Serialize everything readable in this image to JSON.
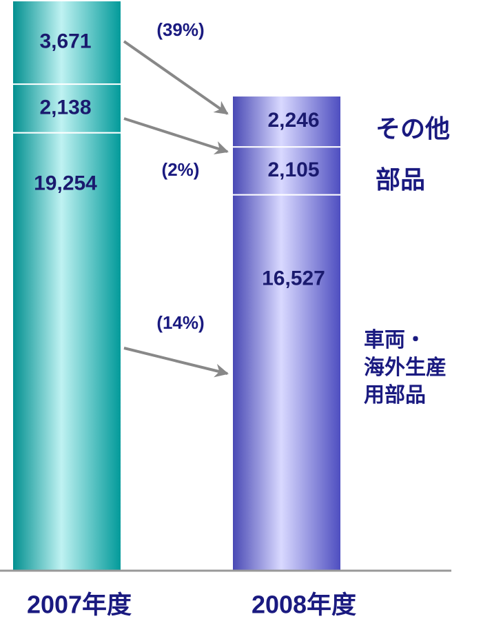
{
  "chart_data": {
    "type": "stacked_bar",
    "categories": [
      "2007年度",
      "2008年度"
    ],
    "colors": [
      "#00cccc",
      "#6666ff"
    ],
    "series": [
      {
        "name": "車両・\n海外生産\n用部品",
        "values": [
          19254,
          16527
        ],
        "value_labels": [
          "19,254",
          "16,527"
        ]
      },
      {
        "name": "部品",
        "values": [
          2138,
          2105
        ],
        "value_labels": [
          "2,138",
          "2,105"
        ]
      },
      {
        "name": "その他",
        "values": [
          3671,
          2246
        ],
        "value_labels": [
          "3,671",
          "2,246"
        ]
      }
    ],
    "annotations": [
      "(39%)",
      "(2%)",
      "(14%)"
    ]
  }
}
